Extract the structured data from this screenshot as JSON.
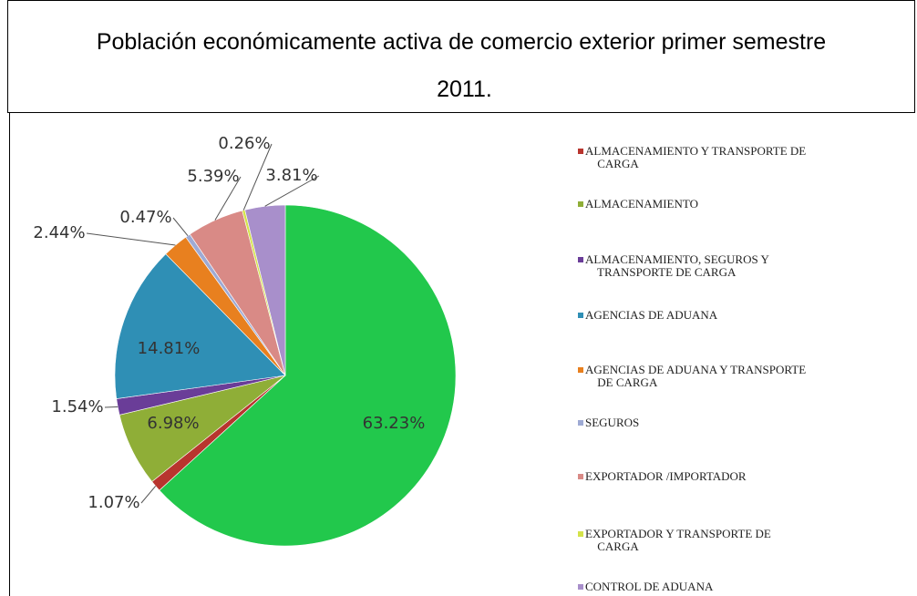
{
  "chart_data": {
    "type": "pie",
    "title": "Población económicamente activa de comercio exterior primer semestre 2011.",
    "categories": [
      "ALMACENAMIENTO Y TRANSPORTE DE CARGA",
      "ALMACENAMIENTO",
      "ALMACENAMIENTO, SEGUROS Y TRANSPORTE DE CARGA",
      "AGENCIAS DE ADUANA",
      "AGENCIAS DE ADUANA Y TRANSPORTE DE CARGA",
      "SEGUROS",
      "EXPORTADOR /IMPORTADOR",
      "EXPORTADOR Y TRANSPORTE DE CARGA",
      "CONTROL DE ADUANA",
      null
    ],
    "values": [
      1.07,
      6.98,
      1.54,
      14.81,
      2.44,
      0.47,
      5.39,
      0.26,
      3.81,
      63.23
    ],
    "value_labels": [
      "1.07%",
      "6.98%",
      "1.54%",
      "14.81%",
      "2.44%",
      "0.47%",
      "5.39%",
      "0.26%",
      "3.81%",
      "63.23%"
    ],
    "colors": [
      "#b8352e",
      "#8fae37",
      "#6a3d98",
      "#2f8fb5",
      "#e8801f",
      "#9eaad4",
      "#d98a86",
      "#d4e34a",
      "#a88fcb",
      "#22c84c"
    ],
    "legend": "right"
  }
}
